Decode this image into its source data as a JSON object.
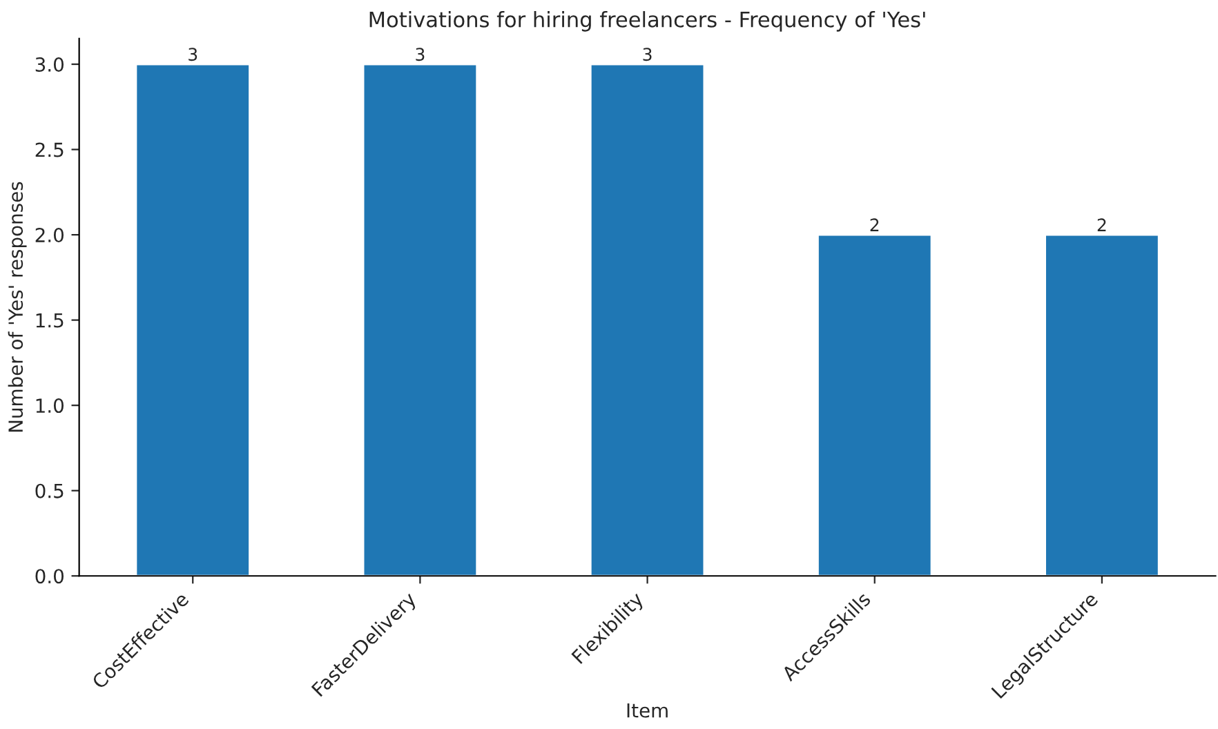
{
  "chart_data": {
    "type": "bar",
    "title": "Motivations for hiring freelancers - Frequency of 'Yes'",
    "xlabel": "Item",
    "ylabel": "Number of 'Yes' responses",
    "categories": [
      "CostEffective",
      "FasterDelivery",
      "Flexibility",
      "AccessSkills",
      "LegalStructure"
    ],
    "values": [
      3,
      3,
      3,
      2,
      2
    ],
    "color": "#1f77b4",
    "data_labels": true,
    "ylim": [
      0,
      3.15
    ],
    "yticks": [
      {
        "value": 0,
        "label": "0.0"
      },
      {
        "value": 0.5,
        "label": "0.5"
      },
      {
        "value": 1,
        "label": "1.0"
      },
      {
        "value": 1.5,
        "label": "1.5"
      },
      {
        "value": 2,
        "label": "2.0"
      },
      {
        "value": 2.5,
        "label": "2.5"
      },
      {
        "value": 3,
        "label": "3.0"
      }
    ],
    "grid": false,
    "legend": false
  }
}
